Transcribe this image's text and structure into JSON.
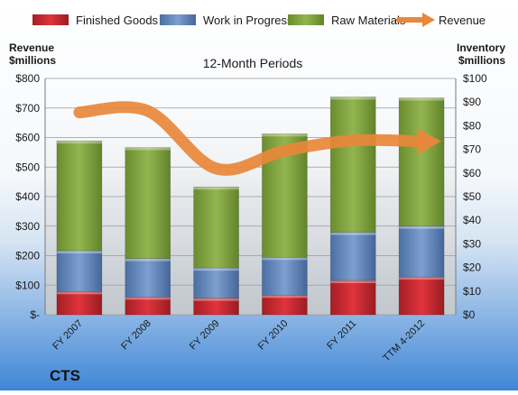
{
  "company": "CTS",
  "chart_data": {
    "type": "bar",
    "title": "12-Month Periods",
    "categories": [
      "FY 2007",
      "FY 2008",
      "FY 2009",
      "FY 2010",
      "FY 2011",
      "TTM 4-2012"
    ],
    "stacked": true,
    "left_axis": {
      "label_line1": "Revenue",
      "label_line2": "$millions",
      "range": [
        0,
        800
      ],
      "ticks": [
        "$-",
        "$100",
        "$200",
        "$300",
        "$400",
        "$500",
        "$600",
        "$700",
        "$800"
      ]
    },
    "right_axis": {
      "label_line1": "Inventory",
      "label_line2": "$millions",
      "range": [
        0,
        100
      ],
      "ticks": [
        "$0",
        "$10",
        "$20",
        "$30",
        "$40",
        "$50",
        "$60",
        "$70",
        "$80",
        "$90",
        "$100"
      ]
    },
    "series": [
      {
        "name": "Finished Goods",
        "axis": "right",
        "color": "#c0282f",
        "values": [
          9.8,
          7.5,
          7.0,
          8.3,
          14.5,
          16.0
        ]
      },
      {
        "name": "Work in Progress",
        "axis": "right",
        "color": "#5b82b8",
        "values": [
          17.3,
          16.3,
          12.8,
          16.0,
          20.4,
          21.5
        ]
      },
      {
        "name": "Raw Materials",
        "axis": "right",
        "color": "#7ea23a",
        "values": [
          46.5,
          47.0,
          34.3,
          52.3,
          57.3,
          54.3
        ]
      },
      {
        "name": "Revenue",
        "axis": "left",
        "type": "line",
        "color": "#e8873a",
        "values": [
          685,
          690,
          495,
          555,
          590,
          587
        ]
      }
    ],
    "legend_position": "top",
    "grid": true
  }
}
